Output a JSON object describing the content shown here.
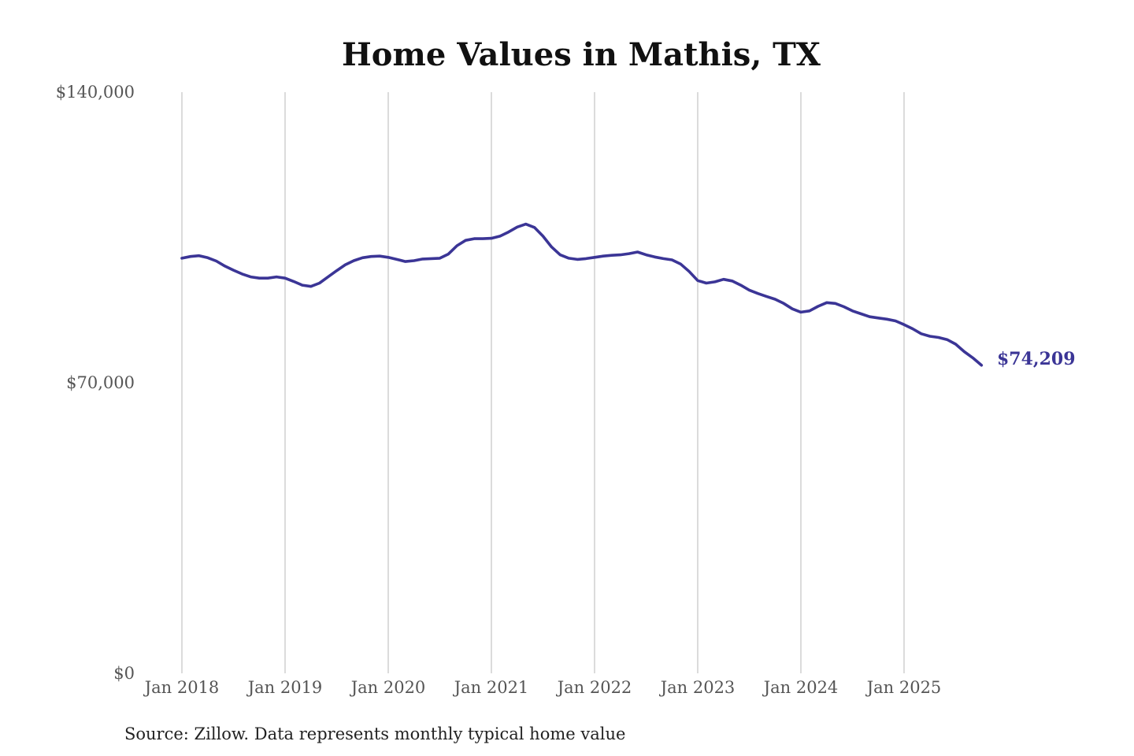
{
  "chart_data": {
    "type": "line",
    "title": "Home Values in Mathis, TX",
    "source_note": "Source: Zillow. Data represents monthly typical home value",
    "xlabel": "",
    "ylabel": "",
    "ylim": [
      0,
      140000
    ],
    "y_ticks": [
      {
        "value": 0,
        "label": "$0"
      },
      {
        "value": 70000,
        "label": "$70,000"
      },
      {
        "value": 140000,
        "label": "$140,000"
      }
    ],
    "x_ticks": [
      {
        "label": "Jan 2018",
        "date": "2018-01"
      },
      {
        "label": "Jan 2019",
        "date": "2019-01"
      },
      {
        "label": "Jan 2020",
        "date": "2020-01"
      },
      {
        "label": "Jan 2021",
        "date": "2021-01"
      },
      {
        "label": "Jan 2022",
        "date": "2022-01"
      },
      {
        "label": "Jan 2023",
        "date": "2023-01"
      },
      {
        "label": "Jan 2024",
        "date": "2024-01"
      },
      {
        "label": "Jan 2025",
        "date": "2025-01"
      }
    ],
    "grid": "vertical",
    "line_color": "#3b3596",
    "end_label": "$74,209",
    "series": [
      {
        "x": [
          "2018-01",
          "2018-02",
          "2018-03",
          "2018-04",
          "2018-05",
          "2018-06",
          "2018-07",
          "2018-08",
          "2018-09",
          "2018-10",
          "2018-11",
          "2018-12",
          "2019-01",
          "2019-02",
          "2019-03",
          "2019-04",
          "2019-05",
          "2019-06",
          "2019-07",
          "2019-08",
          "2019-09",
          "2019-10",
          "2019-11",
          "2019-12",
          "2020-01",
          "2020-02",
          "2020-03",
          "2020-04",
          "2020-05",
          "2020-06",
          "2020-07",
          "2020-08",
          "2020-09",
          "2020-10",
          "2020-11",
          "2020-12",
          "2021-01",
          "2021-02",
          "2021-03",
          "2021-04",
          "2021-05",
          "2021-06",
          "2021-07",
          "2021-08",
          "2021-09",
          "2021-10",
          "2021-11",
          "2021-12",
          "2022-01",
          "2022-02",
          "2022-03",
          "2022-04",
          "2022-05",
          "2022-06",
          "2022-07",
          "2022-08",
          "2022-09",
          "2022-10",
          "2022-11",
          "2022-12",
          "2023-01",
          "2023-02",
          "2023-03",
          "2023-04",
          "2023-05",
          "2023-06",
          "2023-07",
          "2023-08",
          "2023-09",
          "2023-10",
          "2023-11",
          "2023-12",
          "2024-01",
          "2024-02",
          "2024-03",
          "2024-04",
          "2024-05",
          "2024-06",
          "2024-07",
          "2024-08",
          "2024-09",
          "2024-10",
          "2024-11",
          "2024-12",
          "2025-01",
          "2025-02",
          "2025-03",
          "2025-04",
          "2025-05",
          "2025-06",
          "2025-07",
          "2025-08",
          "2025-09",
          "2025-10"
        ],
        "values": [
          100000,
          100400,
          100600,
          100100,
          99300,
          98100,
          97100,
          96200,
          95500,
          95200,
          95200,
          95500,
          95200,
          94400,
          93500,
          93200,
          94000,
          95500,
          97000,
          98400,
          99400,
          100100,
          100400,
          100500,
          100200,
          99700,
          99200,
          99400,
          99800,
          99900,
          100000,
          101000,
          103000,
          104300,
          104700,
          104700,
          104800,
          105300,
          106300,
          107500,
          108200,
          107400,
          105300,
          102700,
          100800,
          100000,
          99700,
          99900,
          100200,
          100500,
          100700,
          100800,
          101100,
          101500,
          100800,
          100300,
          99900,
          99600,
          98600,
          96800,
          94600,
          94000,
          94300,
          94900,
          94500,
          93500,
          92300,
          91500,
          90800,
          90100,
          89100,
          87800,
          87000,
          87300,
          88400,
          89300,
          89100,
          88300,
          87300,
          86600,
          85900,
          85600,
          85300,
          84900,
          84000,
          83000,
          81800,
          81200,
          80900,
          80400,
          79300,
          77500,
          76000,
          74209
        ]
      }
    ]
  }
}
